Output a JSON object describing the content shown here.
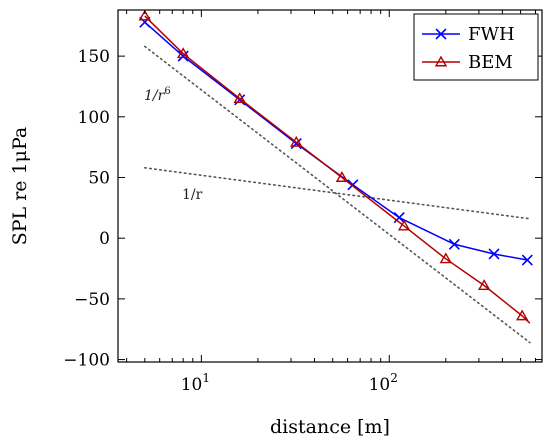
{
  "chart_data": {
    "type": "line",
    "xscale": "log",
    "xlabel": "distance [m]",
    "ylabel": "SPL re 1μPa",
    "xlim": [
      3.6,
      650
    ],
    "ylim": [
      -102,
      188
    ],
    "x_ticks_major": [
      {
        "value": 10,
        "label_base": "10",
        "label_exp": "1"
      },
      {
        "value": 100,
        "label_base": "10",
        "label_exp": "2"
      }
    ],
    "y_ticks": [
      -100,
      -50,
      0,
      50,
      100,
      150
    ],
    "y_tick_labels": [
      "−100",
      "−50",
      "0",
      "50",
      "100",
      "150"
    ],
    "grid": false,
    "legend_position": "top-right",
    "series": [
      {
        "name": "FWH",
        "color": "#0000ff",
        "marker": "x",
        "x": [
          5,
          8,
          16,
          32,
          64,
          113,
          222,
          361,
          543
        ],
        "y": [
          178,
          150,
          114,
          78,
          44,
          17,
          -5,
          -13,
          -18
        ]
      },
      {
        "name": "BEM",
        "color": "#b30000",
        "marker": "triangle",
        "x": [
          5,
          8,
          16,
          32,
          56,
          120,
          200,
          320,
          510,
          560
        ],
        "y": [
          183,
          152,
          115,
          79,
          50,
          10,
          -17,
          -39,
          -64,
          -70
        ]
      }
    ],
    "reference_lines": [
      {
        "label": "1/r",
        "x": [
          5,
          560
        ],
        "y": [
          58,
          16
        ],
        "style": "dotted",
        "color": "#555555"
      },
      {
        "label_base": "1/r",
        "label_exp": "6",
        "x": [
          5,
          560
        ],
        "y": [
          158,
          -86
        ],
        "style": "dotted",
        "color": "#555555"
      }
    ]
  }
}
